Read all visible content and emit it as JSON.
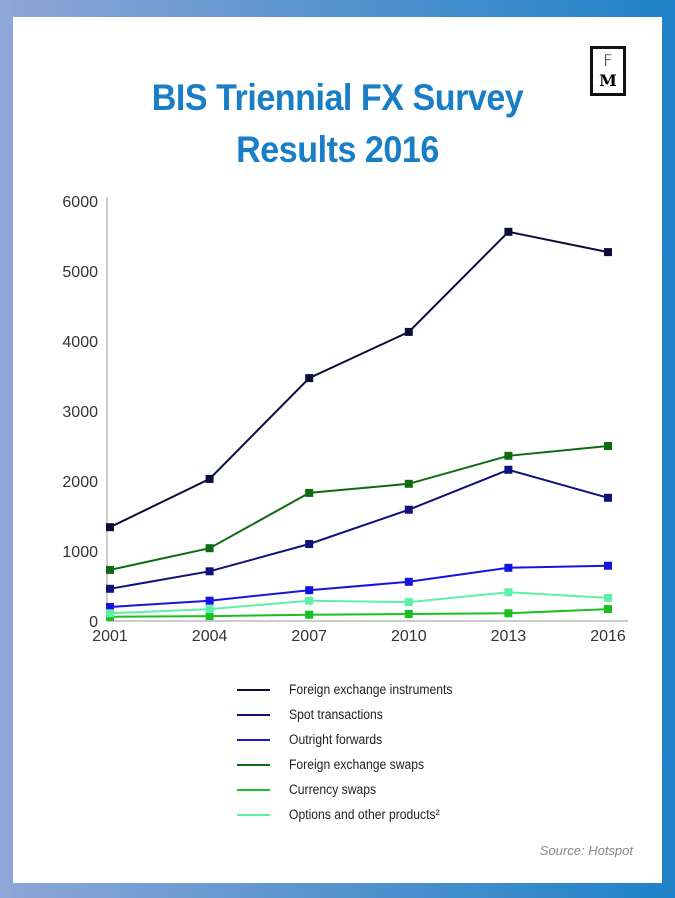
{
  "header": {
    "title_line1": "BIS Triennial FX Survey",
    "title_line2": "Results 2016",
    "logo_letters": [
      "F",
      "M"
    ]
  },
  "source": "Source: Hotspot",
  "chart_data": {
    "type": "line",
    "title": "BIS Triennial FX Survey Results 2016",
    "x": [
      "2001",
      "2004",
      "2007",
      "2010",
      "2013",
      "2016"
    ],
    "ylim": [
      0,
      6000
    ],
    "yticks": [
      0,
      1000,
      2000,
      3000,
      4000,
      5000,
      6000
    ],
    "grid": false,
    "legend_placement": "bottom",
    "series": [
      {
        "name": "Foreign exchange instruments",
        "color": "#0d0d3a",
        "values": [
          1340,
          2030,
          3470,
          4130,
          5560,
          5270
        ]
      },
      {
        "name": "Spot transactions",
        "color": "#11117a",
        "values": [
          460,
          710,
          1100,
          1590,
          2160,
          1760
        ]
      },
      {
        "name": "Outright forwards",
        "color": "#1515e0",
        "values": [
          200,
          290,
          440,
          560,
          760,
          790
        ]
      },
      {
        "name": "Foreign exchange swaps",
        "color": "#0e6b12",
        "values": [
          730,
          1040,
          1830,
          1960,
          2360,
          2500
        ]
      },
      {
        "name": "Currency swaps",
        "color": "#19c01f",
        "values": [
          60,
          70,
          90,
          100,
          110,
          170
        ]
      },
      {
        "name": "Options and other products²",
        "color": "#5ef0a8",
        "values": [
          110,
          170,
          290,
          270,
          410,
          330
        ]
      }
    ]
  }
}
